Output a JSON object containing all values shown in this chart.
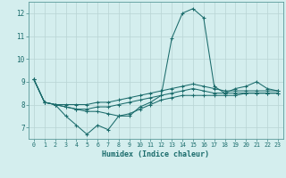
{
  "xlabel": "Humidex (Indice chaleur)",
  "bg_color": "#d4eeee",
  "grid_color": "#b8d4d4",
  "line_color": "#1a6b6b",
  "spine_color": "#5a9a9a",
  "xlim": [
    -0.5,
    23.5
  ],
  "ylim": [
    6.5,
    12.5
  ],
  "yticks": [
    7,
    8,
    9,
    10,
    11,
    12
  ],
  "xticks": [
    0,
    1,
    2,
    3,
    4,
    5,
    6,
    7,
    8,
    9,
    10,
    11,
    12,
    13,
    14,
    15,
    16,
    17,
    18,
    19,
    20,
    21,
    22,
    23
  ],
  "series": [
    [
      9.1,
      8.1,
      8.0,
      7.5,
      7.1,
      6.7,
      7.1,
      6.9,
      7.5,
      7.5,
      7.9,
      8.1,
      8.4,
      10.9,
      12.0,
      12.2,
      11.8,
      8.8,
      8.5,
      8.7,
      8.8,
      9.0,
      8.7,
      8.6
    ],
    [
      9.1,
      8.1,
      8.0,
      7.9,
      7.8,
      7.7,
      7.7,
      7.6,
      7.5,
      7.6,
      7.8,
      8.0,
      8.2,
      8.3,
      8.4,
      8.4,
      8.4,
      8.4,
      8.4,
      8.4,
      8.5,
      8.5,
      8.5,
      8.5
    ],
    [
      9.1,
      8.1,
      8.0,
      7.9,
      7.8,
      7.8,
      7.9,
      7.9,
      8.0,
      8.1,
      8.2,
      8.3,
      8.4,
      8.5,
      8.6,
      8.7,
      8.6,
      8.5,
      8.5,
      8.5,
      8.5,
      8.5,
      8.5,
      8.5
    ],
    [
      9.1,
      8.1,
      8.0,
      8.0,
      8.0,
      8.0,
      8.1,
      8.1,
      8.2,
      8.3,
      8.4,
      8.5,
      8.6,
      8.7,
      8.8,
      8.9,
      8.8,
      8.7,
      8.6,
      8.6,
      8.6,
      8.6,
      8.6,
      8.6
    ]
  ]
}
